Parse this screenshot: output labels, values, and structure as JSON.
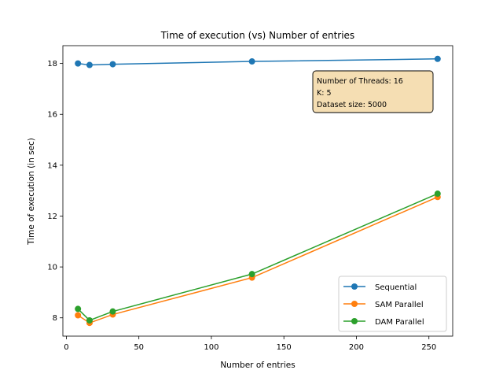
{
  "chart_data": {
    "type": "line",
    "title": "Time of execution (vs) Number of entries",
    "xlabel": "Number of entries",
    "ylabel": "Time of execution (in sec)",
    "xlim": [
      -2.4,
      266.4
    ],
    "ylim": [
      7.28,
      18.7
    ],
    "xticks": [
      0,
      50,
      100,
      150,
      200,
      250
    ],
    "yticks": [
      8,
      10,
      12,
      14,
      16,
      18
    ],
    "grid": false,
    "legend_position": "lower right",
    "x": [
      8,
      16,
      32,
      128,
      256
    ],
    "series": [
      {
        "name": "Sequential",
        "color": "#1f77b4",
        "marker": "circle",
        "values": [
          18.0,
          17.94,
          17.97,
          18.08,
          18.18
        ]
      },
      {
        "name": "SAM Parallel",
        "color": "#ff7f0e",
        "marker": "circle",
        "values": [
          8.1,
          7.8,
          8.13,
          9.58,
          12.75
        ]
      },
      {
        "name": "DAM Parallel",
        "color": "#2ca02c",
        "marker": "circle",
        "values": [
          8.35,
          7.9,
          8.25,
          9.72,
          12.88
        ]
      }
    ],
    "annotation": {
      "lines": [
        "Number of Threads: 16",
        "K: 5",
        "Dataset size: 5000"
      ],
      "facecolor": "#f5deb3",
      "position": "upper right"
    }
  }
}
